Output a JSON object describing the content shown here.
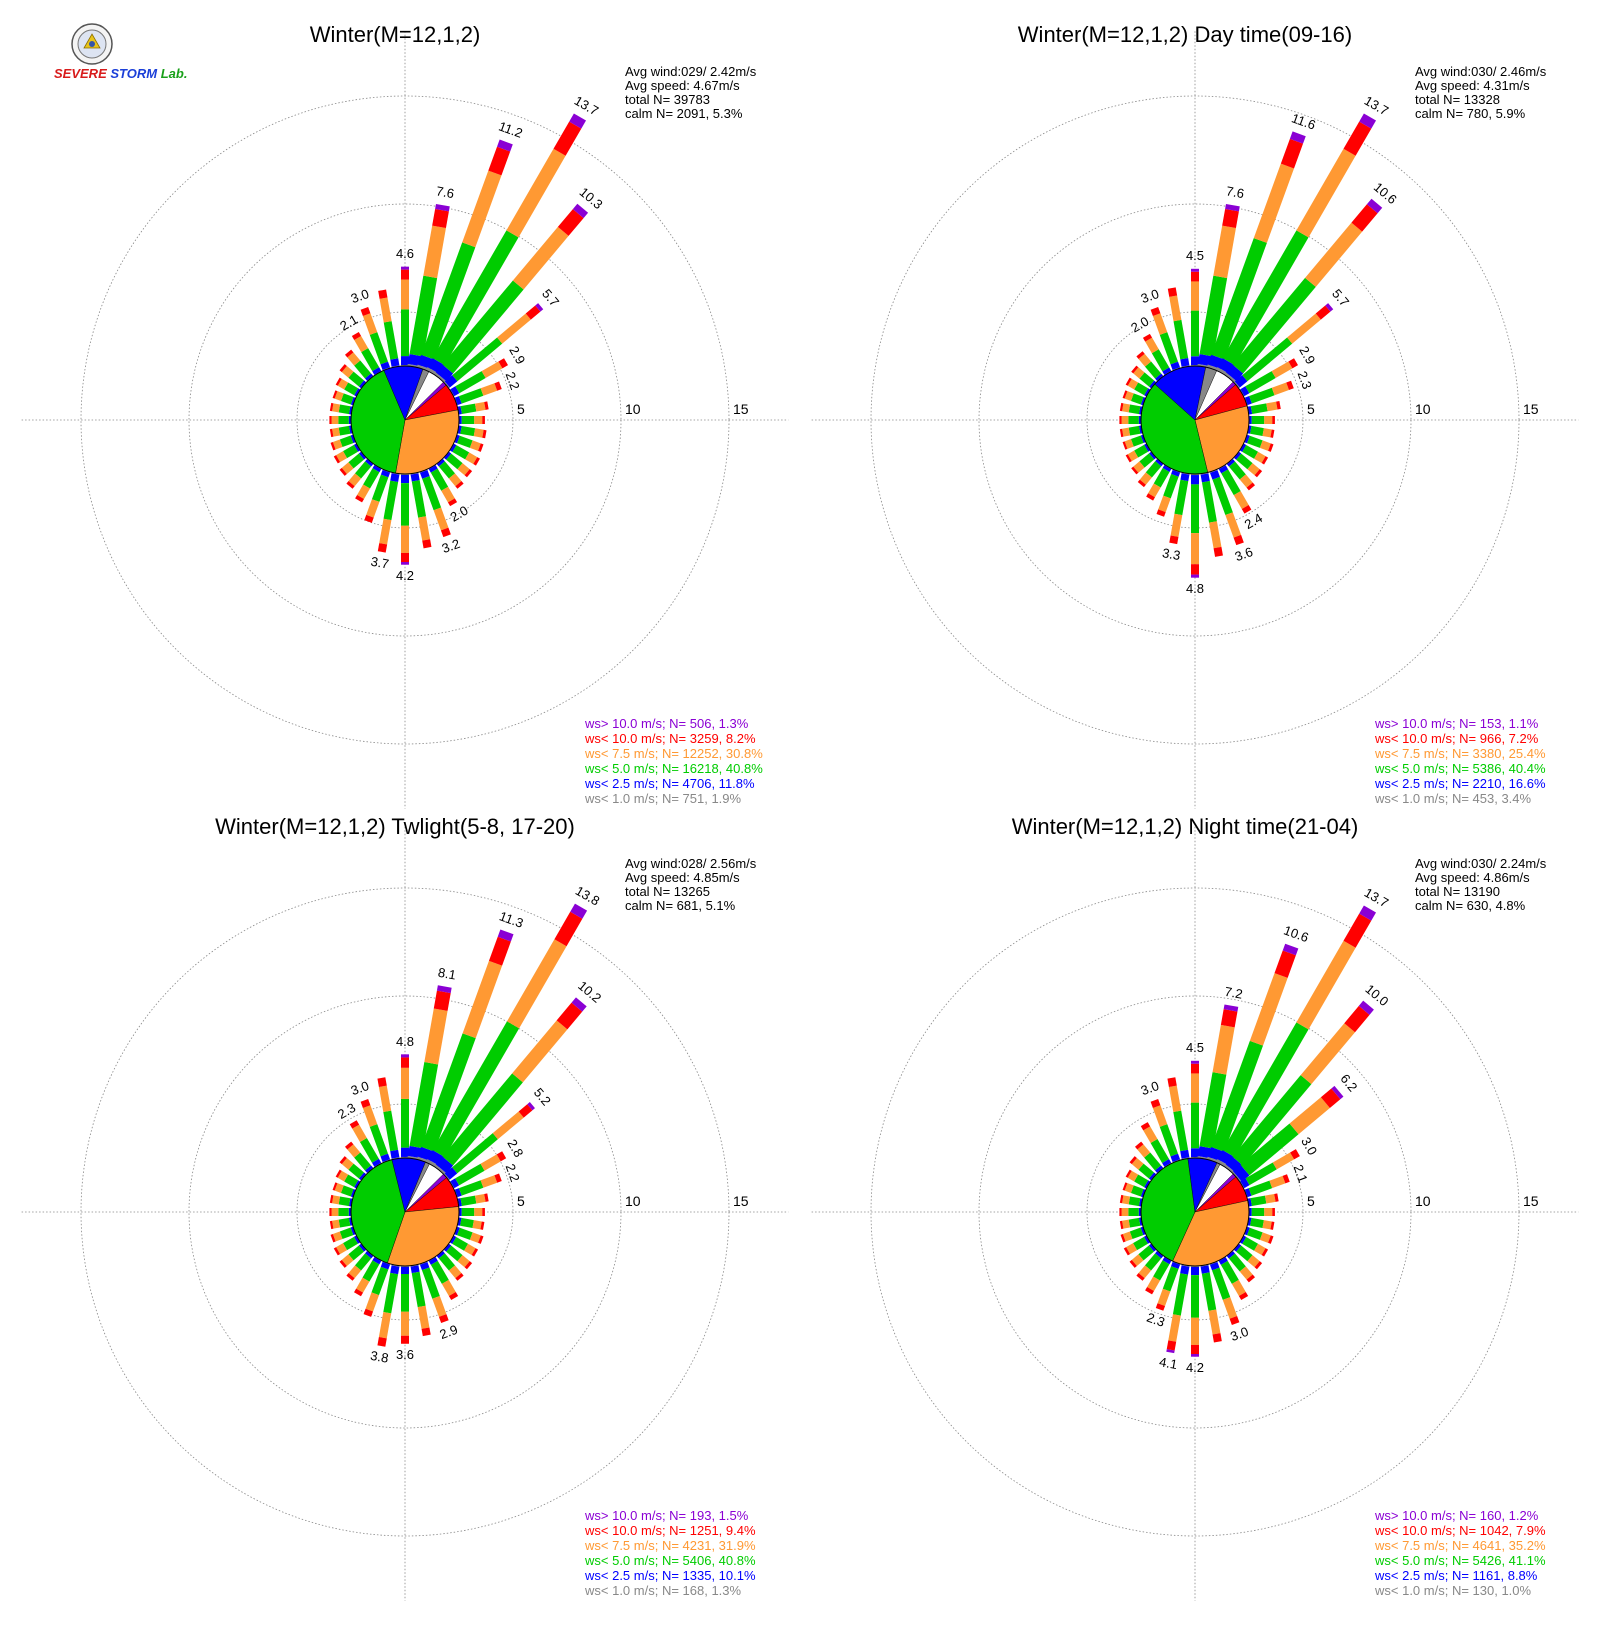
{
  "logo": {
    "text_severe": "SEVERE",
    "text_storm": "STORM",
    "text_lab": "Lab."
  },
  "colors": {
    "gt10": "#8a00d4",
    "lt10": "#ff0000",
    "lt7_5": "#ff9933",
    "lt5": "#00cc00",
    "lt2_5": "#0000ff",
    "lt1": "#888888"
  },
  "chart_data": [
    {
      "type": "wind-rose",
      "title": "Winter(M=12,1,2)",
      "stats": [
        "Avg wind:029/ 2.42m/s",
        "Avg speed: 4.67m/s",
        "total N=      39783",
        "calm N=    2091,   5.3%"
      ],
      "ring_labels": [
        "5",
        "10",
        "15"
      ],
      "rmax": 15,
      "direction_bin_deg": 10,
      "legend": [
        {
          "text": "ws> 10.0 m/s; N=   506,  1.3%",
          "color": "#8a00d4"
        },
        {
          "text": "ws< 10.0 m/s; N=  3259,  8.2%",
          "color": "#ff0000"
        },
        {
          "text": "ws<  7.5 m/s; N= 12252, 30.8%",
          "color": "#ff9933"
        },
        {
          "text": "ws<  5.0 m/s; N= 16218, 40.8%",
          "color": "#00cc00"
        },
        {
          "text": "ws<  2.5 m/s; N=  4706, 11.8%",
          "color": "#0000ff"
        },
        {
          "text": "ws<  1.0 m/s; N=   751,  1.9%",
          "color": "#888888"
        }
      ],
      "bars": [
        {
          "dir": 0,
          "total": 4.6,
          "label": "4.6"
        },
        {
          "dir": 10,
          "total": 7.6,
          "label": "7.6"
        },
        {
          "dir": 20,
          "total": 11.2,
          "label": "11.2"
        },
        {
          "dir": 30,
          "total": 13.7,
          "label": "13.7"
        },
        {
          "dir": 40,
          "total": 10.3,
          "label": "10.3"
        },
        {
          "dir": 50,
          "total": 5.7,
          "label": "5.7"
        },
        {
          "dir": 60,
          "total": 2.9,
          "label": "2.9"
        },
        {
          "dir": 70,
          "total": 2.2,
          "label": "2.2"
        },
        {
          "dir": 80,
          "total": 1.4,
          "label": ""
        },
        {
          "dir": 90,
          "total": 1.2,
          "label": ""
        },
        {
          "dir": 100,
          "total": 1.3,
          "label": ""
        },
        {
          "dir": 110,
          "total": 1.3,
          "label": ""
        },
        {
          "dir": 120,
          "total": 1.4,
          "label": ""
        },
        {
          "dir": 130,
          "total": 1.4,
          "label": ""
        },
        {
          "dir": 140,
          "total": 1.5,
          "label": ""
        },
        {
          "dir": 150,
          "total": 2.0,
          "label": "2.0"
        },
        {
          "dir": 160,
          "total": 3.2,
          "label": "3.2"
        },
        {
          "dir": 170,
          "total": 3.5,
          "label": ""
        },
        {
          "dir": 180,
          "total": 4.2,
          "label": "4.2"
        },
        {
          "dir": 190,
          "total": 3.7,
          "label": "3.7"
        },
        {
          "dir": 200,
          "total": 2.5,
          "label": ""
        },
        {
          "dir": 210,
          "total": 1.8,
          "label": ""
        },
        {
          "dir": 220,
          "total": 1.5,
          "label": ""
        },
        {
          "dir": 230,
          "total": 1.3,
          "label": ""
        },
        {
          "dir": 240,
          "total": 1.2,
          "label": ""
        },
        {
          "dir": 250,
          "total": 1.1,
          "label": ""
        },
        {
          "dir": 260,
          "total": 1.0,
          "label": ""
        },
        {
          "dir": 270,
          "total": 1.0,
          "label": ""
        },
        {
          "dir": 280,
          "total": 1.0,
          "label": ""
        },
        {
          "dir": 290,
          "total": 1.0,
          "label": ""
        },
        {
          "dir": 300,
          "total": 1.1,
          "label": ""
        },
        {
          "dir": 310,
          "total": 1.3,
          "label": ""
        },
        {
          "dir": 320,
          "total": 1.6,
          "label": ""
        },
        {
          "dir": 330,
          "total": 2.1,
          "label": "2.1"
        },
        {
          "dir": 340,
          "total": 3.0,
          "label": "3.0"
        },
        {
          "dir": 350,
          "total": 3.6,
          "label": ""
        }
      ],
      "pie": [
        0.013,
        0.082,
        0.308,
        0.408,
        0.118,
        0.019,
        0.053
      ]
    },
    {
      "type": "wind-rose",
      "title": "Winter(M=12,1,2) Day time(09-16)",
      "stats": [
        "Avg wind:030/ 2.46m/s",
        "Avg speed: 4.31m/s",
        "total N=      13328",
        "calm N=     780,   5.9%"
      ],
      "ring_labels": [
        "5",
        "10",
        "15"
      ],
      "rmax": 15,
      "direction_bin_deg": 10,
      "legend": [
        {
          "text": "ws> 10.0 m/s; N=   153,  1.1%",
          "color": "#8a00d4"
        },
        {
          "text": "ws< 10.0 m/s; N=   966,  7.2%",
          "color": "#ff0000"
        },
        {
          "text": "ws<  7.5 m/s; N=  3380, 25.4%",
          "color": "#ff9933"
        },
        {
          "text": "ws<  5.0 m/s; N=  5386, 40.4%",
          "color": "#00cc00"
        },
        {
          "text": "ws<  2.5 m/s; N=  2210, 16.6%",
          "color": "#0000ff"
        },
        {
          "text": "ws<  1.0 m/s; N=   453,  3.4%",
          "color": "#888888"
        }
      ],
      "bars": [
        {
          "dir": 0,
          "total": 4.5,
          "label": "4.5"
        },
        {
          "dir": 10,
          "total": 7.6,
          "label": "7.6"
        },
        {
          "dir": 20,
          "total": 11.6,
          "label": "11.6"
        },
        {
          "dir": 30,
          "total": 13.7,
          "label": "13.7"
        },
        {
          "dir": 40,
          "total": 10.6,
          "label": "10.6"
        },
        {
          "dir": 50,
          "total": 5.7,
          "label": "5.7"
        },
        {
          "dir": 60,
          "total": 2.9,
          "label": "2.9"
        },
        {
          "dir": 70,
          "total": 2.3,
          "label": "2.3"
        },
        {
          "dir": 80,
          "total": 1.5,
          "label": ""
        },
        {
          "dir": 90,
          "total": 1.2,
          "label": ""
        },
        {
          "dir": 100,
          "total": 1.2,
          "label": ""
        },
        {
          "dir": 110,
          "total": 1.3,
          "label": ""
        },
        {
          "dir": 120,
          "total": 1.3,
          "label": ""
        },
        {
          "dir": 130,
          "total": 1.4,
          "label": ""
        },
        {
          "dir": 140,
          "total": 1.6,
          "label": ""
        },
        {
          "dir": 150,
          "total": 2.4,
          "label": "2.4"
        },
        {
          "dir": 160,
          "total": 3.6,
          "label": "3.6"
        },
        {
          "dir": 170,
          "total": 3.9,
          "label": ""
        },
        {
          "dir": 180,
          "total": 4.8,
          "label": "4.8"
        },
        {
          "dir": 190,
          "total": 3.3,
          "label": "3.3"
        },
        {
          "dir": 200,
          "total": 2.2,
          "label": ""
        },
        {
          "dir": 210,
          "total": 1.7,
          "label": ""
        },
        {
          "dir": 220,
          "total": 1.4,
          "label": ""
        },
        {
          "dir": 230,
          "total": 1.2,
          "label": ""
        },
        {
          "dir": 240,
          "total": 1.1,
          "label": ""
        },
        {
          "dir": 250,
          "total": 1.0,
          "label": ""
        },
        {
          "dir": 260,
          "total": 1.0,
          "label": ""
        },
        {
          "dir": 270,
          "total": 1.0,
          "label": ""
        },
        {
          "dir": 280,
          "total": 1.0,
          "label": ""
        },
        {
          "dir": 290,
          "total": 1.0,
          "label": ""
        },
        {
          "dir": 300,
          "total": 1.1,
          "label": ""
        },
        {
          "dir": 310,
          "total": 1.2,
          "label": ""
        },
        {
          "dir": 320,
          "total": 1.5,
          "label": ""
        },
        {
          "dir": 330,
          "total": 2.0,
          "label": "2.0"
        },
        {
          "dir": 340,
          "total": 3.0,
          "label": "3.0"
        },
        {
          "dir": 350,
          "total": 3.7,
          "label": ""
        }
      ],
      "pie": [
        0.011,
        0.072,
        0.254,
        0.404,
        0.166,
        0.034,
        0.059
      ]
    },
    {
      "type": "wind-rose",
      "title": "Winter(M=12,1,2) Twlight(5-8, 17-20)",
      "stats": [
        "Avg wind:028/ 2.56m/s",
        "Avg speed: 4.85m/s",
        "total N=      13265",
        "calm N=     681,   5.1%"
      ],
      "ring_labels": [
        "5",
        "10",
        "15"
      ],
      "rmax": 15,
      "direction_bin_deg": 10,
      "legend": [
        {
          "text": "ws> 10.0 m/s; N=   193,  1.5%",
          "color": "#8a00d4"
        },
        {
          "text": "ws< 10.0 m/s; N=  1251,  9.4%",
          "color": "#ff0000"
        },
        {
          "text": "ws<  7.5 m/s; N=  4231, 31.9%",
          "color": "#ff9933"
        },
        {
          "text": "ws<  5.0 m/s; N=  5406, 40.8%",
          "color": "#00cc00"
        },
        {
          "text": "ws<  2.5 m/s; N=  1335, 10.1%",
          "color": "#0000ff"
        },
        {
          "text": "ws<  1.0 m/s; N=   168,  1.3%",
          "color": "#888888"
        }
      ],
      "bars": [
        {
          "dir": 0,
          "total": 4.8,
          "label": "4.8"
        },
        {
          "dir": 10,
          "total": 8.1,
          "label": "8.1"
        },
        {
          "dir": 20,
          "total": 11.3,
          "label": "11.3"
        },
        {
          "dir": 30,
          "total": 13.8,
          "label": "13.8"
        },
        {
          "dir": 40,
          "total": 10.2,
          "label": "10.2"
        },
        {
          "dir": 50,
          "total": 5.2,
          "label": "5.2"
        },
        {
          "dir": 60,
          "total": 2.8,
          "label": "2.8"
        },
        {
          "dir": 70,
          "total": 2.2,
          "label": "2.2"
        },
        {
          "dir": 80,
          "total": 1.4,
          "label": ""
        },
        {
          "dir": 90,
          "total": 1.2,
          "label": ""
        },
        {
          "dir": 100,
          "total": 1.2,
          "label": ""
        },
        {
          "dir": 110,
          "total": 1.3,
          "label": ""
        },
        {
          "dir": 120,
          "total": 1.3,
          "label": ""
        },
        {
          "dir": 130,
          "total": 1.4,
          "label": ""
        },
        {
          "dir": 140,
          "total": 1.5,
          "label": ""
        },
        {
          "dir": 150,
          "total": 2.1,
          "label": ""
        },
        {
          "dir": 160,
          "total": 2.9,
          "label": "2.9"
        },
        {
          "dir": 170,
          "total": 3.3,
          "label": ""
        },
        {
          "dir": 180,
          "total": 3.6,
          "label": "3.6"
        },
        {
          "dir": 190,
          "total": 3.8,
          "label": "3.8"
        },
        {
          "dir": 200,
          "total": 2.6,
          "label": ""
        },
        {
          "dir": 210,
          "total": 1.9,
          "label": ""
        },
        {
          "dir": 220,
          "total": 1.5,
          "label": ""
        },
        {
          "dir": 230,
          "total": 1.3,
          "label": ""
        },
        {
          "dir": 240,
          "total": 1.2,
          "label": ""
        },
        {
          "dir": 250,
          "total": 1.1,
          "label": ""
        },
        {
          "dir": 260,
          "total": 1.0,
          "label": ""
        },
        {
          "dir": 270,
          "total": 1.0,
          "label": ""
        },
        {
          "dir": 280,
          "total": 1.0,
          "label": ""
        },
        {
          "dir": 290,
          "total": 1.0,
          "label": ""
        },
        {
          "dir": 300,
          "total": 1.1,
          "label": ""
        },
        {
          "dir": 310,
          "total": 1.3,
          "label": ""
        },
        {
          "dir": 320,
          "total": 1.6,
          "label": ""
        },
        {
          "dir": 330,
          "total": 2.3,
          "label": "2.3"
        },
        {
          "dir": 340,
          "total": 3.0,
          "label": "3.0"
        },
        {
          "dir": 350,
          "total": 3.8,
          "label": ""
        }
      ],
      "pie": [
        0.015,
        0.094,
        0.319,
        0.408,
        0.101,
        0.013,
        0.051
      ]
    },
    {
      "type": "wind-rose",
      "title": "Winter(M=12,1,2) Night time(21-04)",
      "stats": [
        "Avg wind:030/ 2.24m/s",
        "Avg speed: 4.86m/s",
        "total N=      13190",
        "calm N=     630,   4.8%"
      ],
      "ring_labels": [
        "5",
        "10",
        "15"
      ],
      "rmax": 15,
      "direction_bin_deg": 10,
      "legend": [
        {
          "text": "ws> 10.0 m/s; N=   160,  1.2%",
          "color": "#8a00d4"
        },
        {
          "text": "ws< 10.0 m/s; N=  1042,  7.9%",
          "color": "#ff0000"
        },
        {
          "text": "ws<  7.5 m/s; N=  4641, 35.2%",
          "color": "#ff9933"
        },
        {
          "text": "ws<  5.0 m/s; N=  5426, 41.1%",
          "color": "#00cc00"
        },
        {
          "text": "ws<  2.5 m/s; N=  1161,  8.8%",
          "color": "#0000ff"
        },
        {
          "text": "ws<  1.0 m/s; N=   130,  1.0%",
          "color": "#888888"
        }
      ],
      "bars": [
        {
          "dir": 0,
          "total": 4.5,
          "label": "4.5"
        },
        {
          "dir": 10,
          "total": 7.2,
          "label": "7.2"
        },
        {
          "dir": 20,
          "total": 10.6,
          "label": "10.6"
        },
        {
          "dir": 30,
          "total": 13.7,
          "label": "13.7"
        },
        {
          "dir": 40,
          "total": 10.0,
          "label": "10.0"
        },
        {
          "dir": 50,
          "total": 6.2,
          "label": "6.2"
        },
        {
          "dir": 60,
          "total": 3.0,
          "label": "3.0"
        },
        {
          "dir": 70,
          "total": 2.1,
          "label": "2.1"
        },
        {
          "dir": 80,
          "total": 1.4,
          "label": ""
        },
        {
          "dir": 90,
          "total": 1.2,
          "label": ""
        },
        {
          "dir": 100,
          "total": 1.2,
          "label": ""
        },
        {
          "dir": 110,
          "total": 1.3,
          "label": ""
        },
        {
          "dir": 120,
          "total": 1.3,
          "label": ""
        },
        {
          "dir": 130,
          "total": 1.4,
          "label": ""
        },
        {
          "dir": 140,
          "total": 1.6,
          "label": ""
        },
        {
          "dir": 150,
          "total": 2.1,
          "label": ""
        },
        {
          "dir": 160,
          "total": 3.0,
          "label": "3.0"
        },
        {
          "dir": 170,
          "total": 3.6,
          "label": ""
        },
        {
          "dir": 180,
          "total": 4.2,
          "label": "4.2"
        },
        {
          "dir": 190,
          "total": 4.1,
          "label": "4.1"
        },
        {
          "dir": 200,
          "total": 2.3,
          "label": "2.3"
        },
        {
          "dir": 210,
          "total": 1.8,
          "label": ""
        },
        {
          "dir": 220,
          "total": 1.5,
          "label": ""
        },
        {
          "dir": 230,
          "total": 1.3,
          "label": ""
        },
        {
          "dir": 240,
          "total": 1.2,
          "label": ""
        },
        {
          "dir": 250,
          "total": 1.1,
          "label": ""
        },
        {
          "dir": 260,
          "total": 1.0,
          "label": ""
        },
        {
          "dir": 270,
          "total": 1.0,
          "label": ""
        },
        {
          "dir": 280,
          "total": 1.0,
          "label": ""
        },
        {
          "dir": 290,
          "total": 1.0,
          "label": ""
        },
        {
          "dir": 300,
          "total": 1.1,
          "label": ""
        },
        {
          "dir": 310,
          "total": 1.3,
          "label": ""
        },
        {
          "dir": 320,
          "total": 1.6,
          "label": ""
        },
        {
          "dir": 330,
          "total": 2.2,
          "label": ""
        },
        {
          "dir": 340,
          "total": 3.0,
          "label": "3.0"
        },
        {
          "dir": 350,
          "total": 3.8,
          "label": ""
        }
      ],
      "pie": [
        0.012,
        0.079,
        0.352,
        0.411,
        0.088,
        0.01,
        0.048
      ]
    }
  ]
}
